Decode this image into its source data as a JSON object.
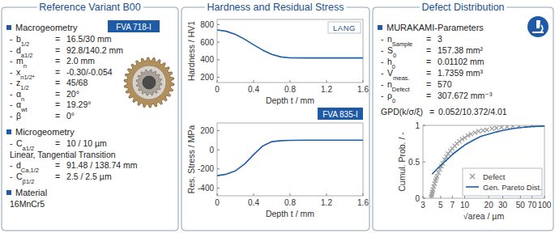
{
  "symbols": {
    "dash": "-",
    "eq": "="
  },
  "panels": {
    "left": {
      "title": "Reference Variant B00",
      "badge": "FVA 718-I",
      "sections": [
        {
          "heading": "Macrogeometry",
          "rows": [
            {
              "sym": "b",
              "sub": "1/2",
              "value": "16.5/30 mm"
            },
            {
              "sym": "d",
              "sub": "a1/2",
              "value": "92.8/140.2 mm"
            },
            {
              "sym": "m",
              "sub": "n",
              "value": "2.0 mm"
            },
            {
              "sym": "x",
              "sub": "n1/2*",
              "value": "-0.30/-0.054"
            },
            {
              "sym": "z",
              "sub": "1/2",
              "value": "45/68"
            },
            {
              "sym": "α",
              "sub": "n",
              "value": "20°"
            },
            {
              "sym": "α",
              "sub": "wt",
              "value": "19.29°"
            },
            {
              "sym": "β",
              "value": "0°"
            }
          ]
        },
        {
          "heading": "Microgeometry",
          "rows": [
            {
              "sym": "C",
              "sub": "a1/2",
              "value": "10 / 10 µm"
            },
            {
              "text": "Linear, Tangential Transition"
            },
            {
              "sym": "d",
              "sub": "Ca,1/2",
              "value": "91.48 / 138.74 mm"
            },
            {
              "sym": "C",
              "sub": "β1/2",
              "value": "2.5 / 2.5 µm"
            }
          ]
        },
        {
          "heading": "Material",
          "rows": [
            {
              "text": "16MnCr5"
            }
          ]
        }
      ]
    },
    "middle": {
      "title": "Hardness and Residual Stress"
    },
    "right": {
      "title": "Defect Distribution",
      "heading": "MURAKAMI-Parameters",
      "rows": [
        {
          "sym": "n",
          "sub": "Sample",
          "value": "3"
        },
        {
          "sym": "S",
          "sub": "0",
          "value": "157.38 mm²"
        },
        {
          "sym": "h",
          "sub": "0",
          "value": "0.01102 mm"
        },
        {
          "sym": "V",
          "sub": "meas.",
          "value": "1.7359 mm³"
        },
        {
          "sym": "n",
          "sub": "Defect",
          "value": "570"
        },
        {
          "sym": "ρ",
          "sub": "0",
          "value": "307.672 mm⁻³"
        }
      ],
      "gpd": {
        "label": "GPD(k/σ/ξ)",
        "value": "0.052/10.372/4.01"
      }
    }
  },
  "chart_data": [
    {
      "type": "line",
      "annotation": "LANG",
      "x_label": "Depth t / mm",
      "y_label": "Hardness / HV1",
      "x": [
        0,
        0.1,
        0.2,
        0.3,
        0.4,
        0.5,
        0.6,
        0.7,
        0.8,
        1.0,
        1.2,
        1.4,
        1.6
      ],
      "values": [
        740,
        725,
        690,
        635,
        570,
        510,
        460,
        432,
        422,
        420,
        420,
        420,
        420
      ],
      "color": "#1f5fa8",
      "xlim": [
        0,
        1.6
      ],
      "xticks": [
        0,
        0.4,
        0.8,
        1.2,
        1.6
      ],
      "ylim": [
        140,
        860
      ],
      "yticks": [
        200,
        400,
        600,
        800
      ],
      "grid": false
    },
    {
      "type": "line",
      "annotation": "FVA 835-I",
      "x_label": "Depth t / mm",
      "y_label": "Res. Stress / MPa",
      "x": [
        0,
        0.1,
        0.2,
        0.3,
        0.4,
        0.5,
        0.6,
        0.7,
        0.8,
        1.0,
        1.2,
        1.4,
        1.6
      ],
      "values": [
        -270,
        -255,
        -220,
        -150,
        -50,
        40,
        85,
        95,
        98,
        100,
        100,
        100,
        100
      ],
      "color": "#1f5fa8",
      "xlim": [
        0,
        1.6
      ],
      "xticks": [
        0,
        0.4,
        0.8,
        1.2,
        1.6
      ],
      "ylim": [
        -480,
        280
      ],
      "yticks": [
        -400,
        -200,
        0,
        200
      ],
      "grid": false
    },
    {
      "type": "line",
      "x_label": "√area / µm",
      "y_label": "Cumul. Prob. / -",
      "log": "x",
      "xlim": [
        3,
        100
      ],
      "xticks": [
        3,
        5,
        7,
        10,
        20,
        30,
        50,
        70,
        100
      ],
      "ylim": [
        0,
        1
      ],
      "yticks": [
        0,
        0.5,
        1
      ],
      "grid": false,
      "legend": "lower right",
      "series": [
        {
          "name": "Defect",
          "type": "scatter",
          "marker": "x",
          "color": "#9a9a9a",
          "x": [
            3.8,
            3.85,
            3.9,
            3.95,
            4.0,
            4.1,
            4.2,
            4.3,
            4.4,
            4.5,
            4.7,
            4.9,
            5.1,
            5.3,
            5.6,
            5.9,
            6.2,
            6.6,
            7,
            7.5,
            8,
            8.6,
            9.3,
            10,
            11,
            12,
            13.5,
            15,
            17,
            19,
            22,
            25,
            29,
            34,
            40,
            48,
            58,
            70
          ],
          "values": [
            0.01,
            0.03,
            0.06,
            0.09,
            0.12,
            0.16,
            0.2,
            0.24,
            0.27,
            0.3,
            0.35,
            0.4,
            0.44,
            0.48,
            0.53,
            0.57,
            0.61,
            0.65,
            0.68,
            0.72,
            0.75,
            0.78,
            0.81,
            0.83,
            0.86,
            0.88,
            0.9,
            0.92,
            0.93,
            0.94,
            0.955,
            0.965,
            0.975,
            0.982,
            0.988,
            0.993,
            0.997,
            1.0
          ]
        },
        {
          "name": "Gen. Pareto Dist.",
          "type": "line",
          "line_style": "solid",
          "color": "#1f5fa8",
          "x": [
            3.9,
            4.5,
            5,
            6,
            7,
            8,
            10,
            13,
            16,
            20,
            25,
            30,
            40,
            50,
            70,
            100
          ],
          "values": [
            0.33,
            0.4,
            0.45,
            0.53,
            0.6,
            0.65,
            0.73,
            0.8,
            0.85,
            0.88,
            0.91,
            0.93,
            0.955,
            0.97,
            0.985,
            0.99
          ]
        }
      ]
    }
  ]
}
